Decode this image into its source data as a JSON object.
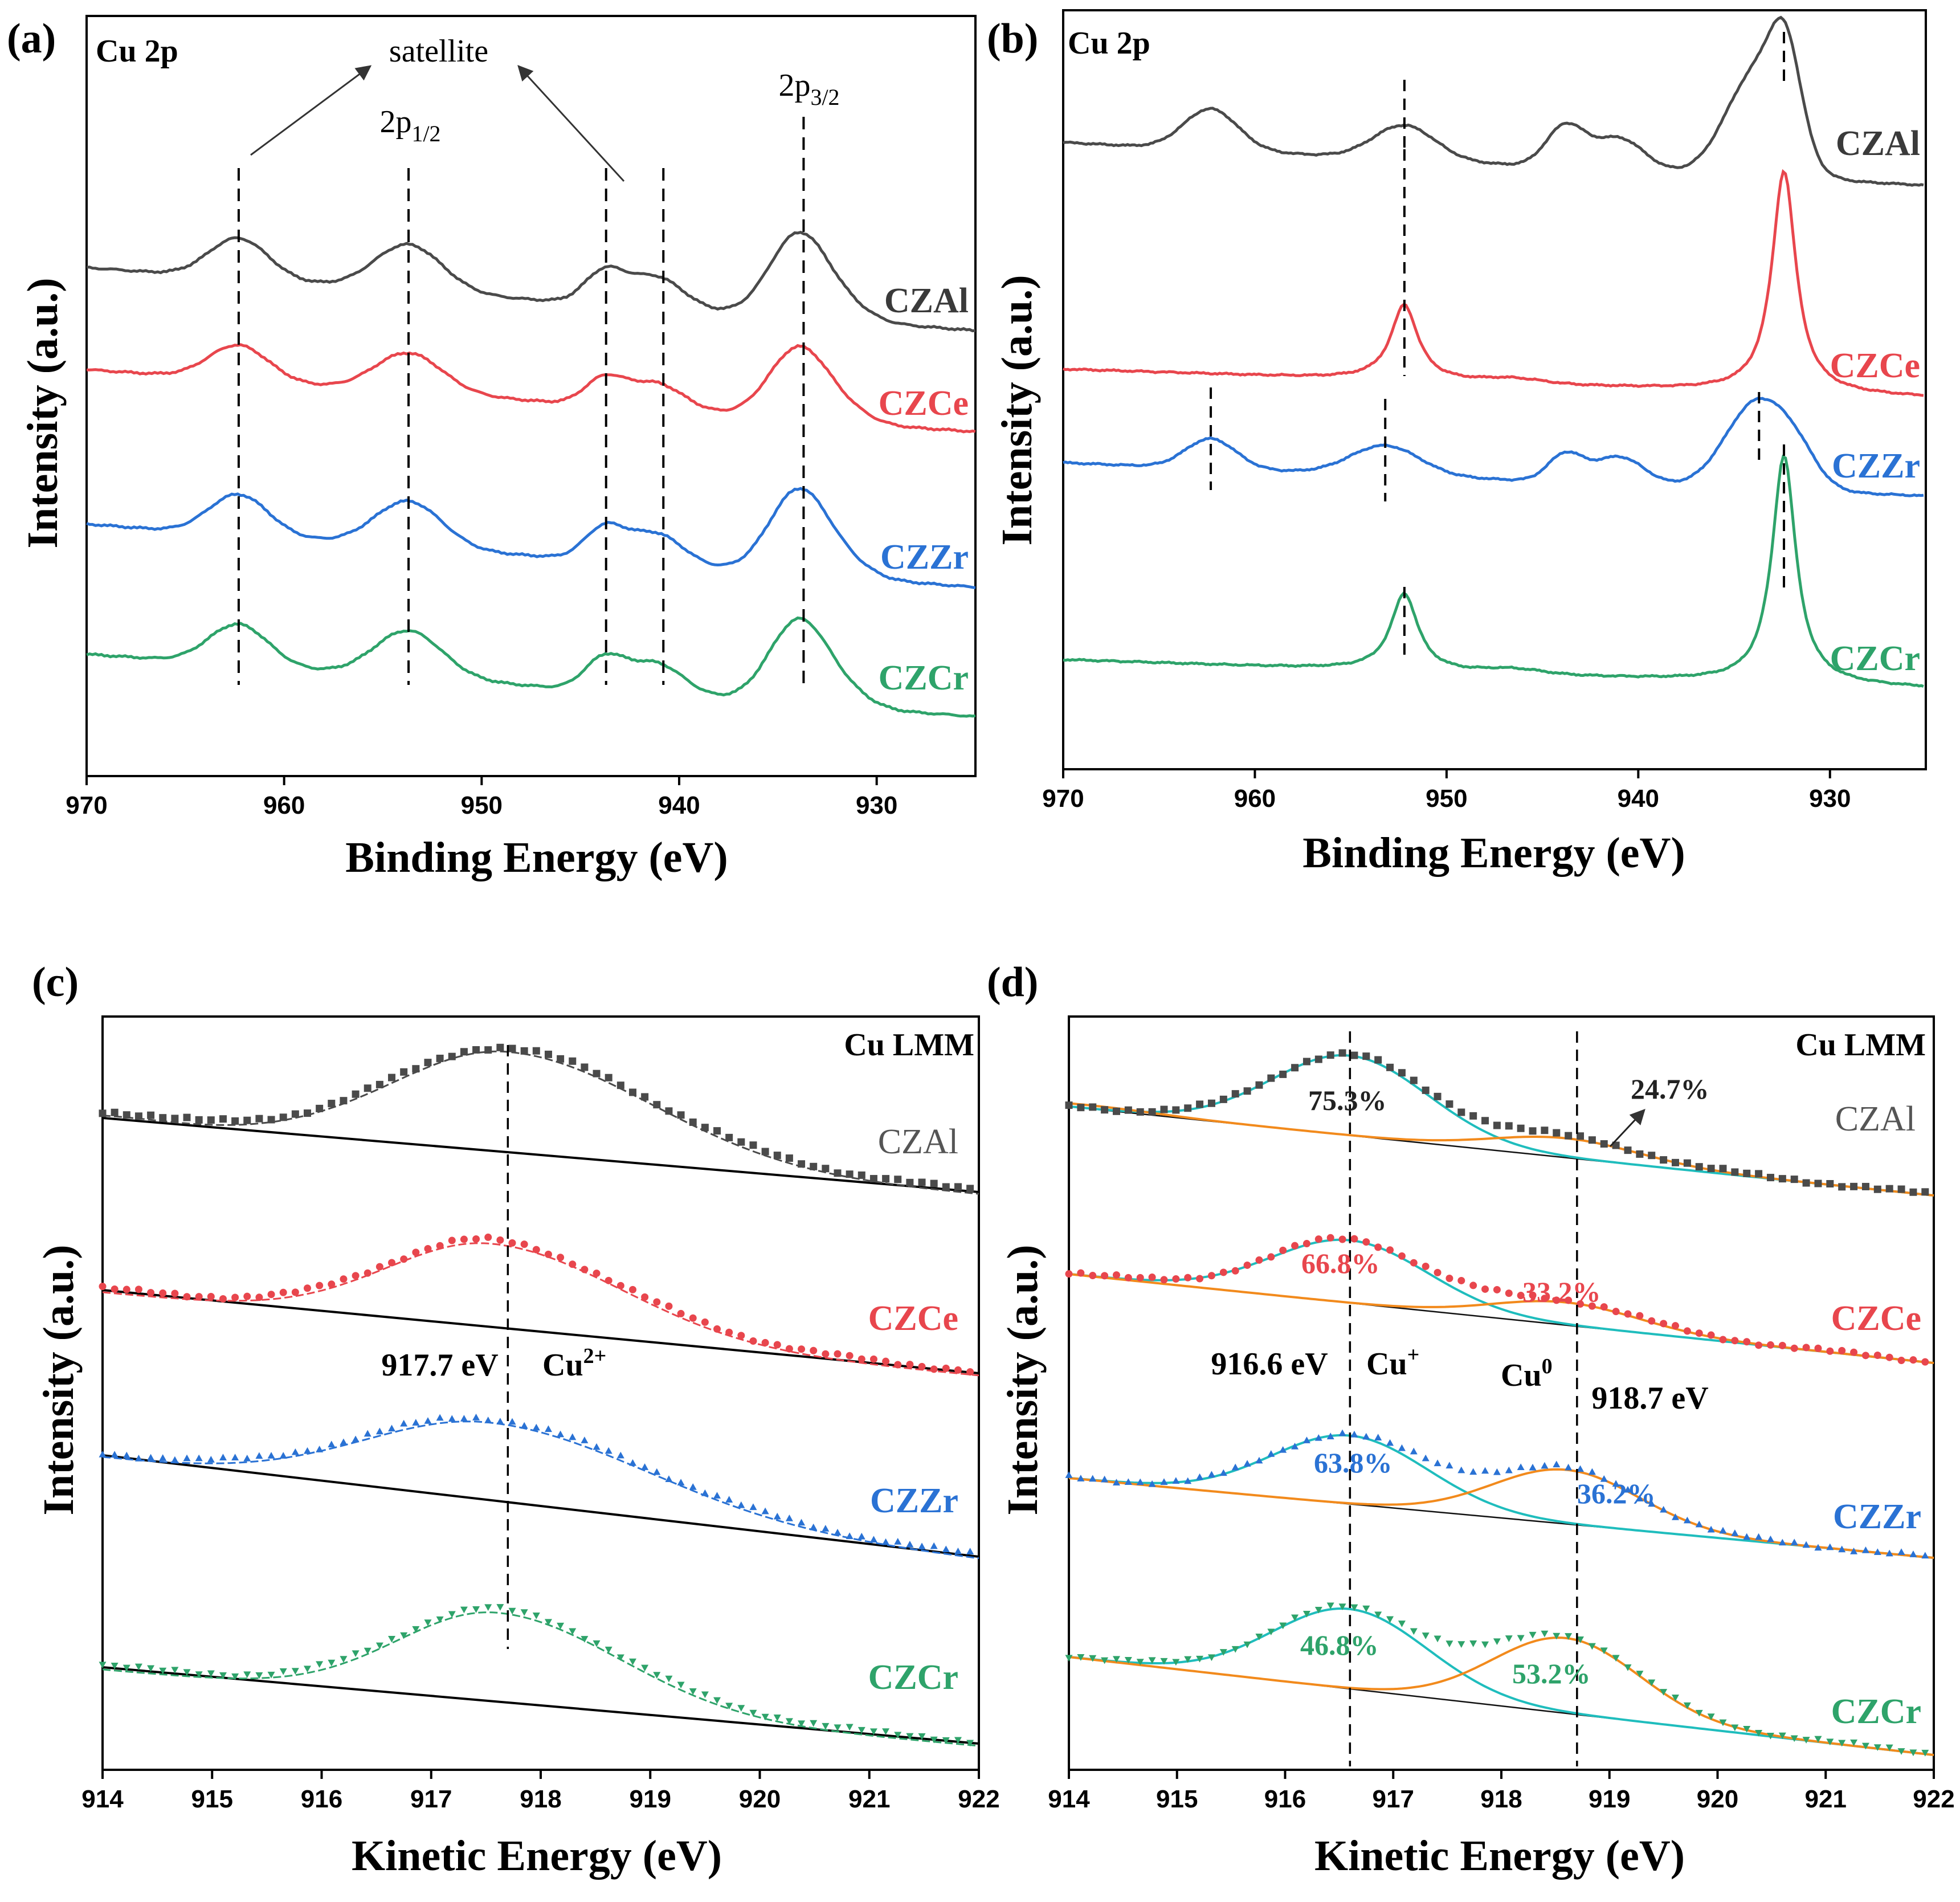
{
  "colors": {
    "CZAl": "#4a4a4a",
    "CZCe": "#e8464d",
    "CZZr": "#2a72d4",
    "CZCr": "#2ea36a",
    "cyan_fit": "#1fbdbd",
    "orange_fit": "#f28a1c",
    "baseline": "#000000"
  },
  "chart_data": [
    {
      "panel": "(a)",
      "type": "line",
      "title": "Cu 2p",
      "xlabel": "Binding Energy (eV)",
      "ylabel": "Intensity (a.u.)",
      "xlim": [
        970,
        925
      ],
      "xticks": [
        970,
        960,
        950,
        940,
        930
      ],
      "peak_lines_x": [
        962.3,
        953.7,
        943.7,
        940.8,
        933.7
      ],
      "annotations": [
        {
          "text": "satellite"
        },
        {
          "text": "2p",
          "sub": "1/2"
        },
        {
          "text": "2p",
          "sub": "3/2"
        }
      ],
      "series": [
        {
          "name": "CZAl",
          "color": "CZAl",
          "offset": 3.0,
          "pattern": "a_ox"
        },
        {
          "name": "CZCe",
          "color": "CZCe",
          "offset": 2.0,
          "pattern": "a_ox_ce"
        },
        {
          "name": "CZZr",
          "color": "CZZr",
          "offset": 1.0,
          "pattern": "a_ox"
        },
        {
          "name": "CZCr",
          "color": "CZCr",
          "offset": 0.0,
          "pattern": "a_ox"
        }
      ]
    },
    {
      "panel": "(b)",
      "type": "line",
      "title": "Cu 2p",
      "xlabel": "Binding Energy (eV)",
      "ylabel": "Intensity (a.u.)",
      "xlim": [
        970,
        925
      ],
      "xticks": [
        970,
        960,
        950,
        940,
        930
      ],
      "series": [
        {
          "name": "CZAl",
          "color": "CZAl",
          "pattern": "b_ox",
          "peak_lines_x": [
            952.2,
            932.4
          ]
        },
        {
          "name": "CZCe",
          "color": "CZCe",
          "pattern": "b_red",
          "peak_lines_x": []
        },
        {
          "name": "CZZr",
          "color": "CZZr",
          "pattern": "b_zr",
          "peak_lines_x": [
            962.3,
            953.2,
            933.7,
            932.4
          ]
        },
        {
          "name": "CZCr",
          "color": "CZCr",
          "pattern": "b_red",
          "peak_lines_x": [
            952.2,
            932.4
          ]
        }
      ]
    },
    {
      "panel": "(c)",
      "type": "scatter",
      "title": "Cu LMM",
      "xlabel": "Kinetic Energy (eV)",
      "ylabel": "Intensity (a.u.)",
      "xlim": [
        914,
        922
      ],
      "xticks": [
        914,
        915,
        916,
        917,
        918,
        919,
        920,
        921,
        922
      ],
      "peak_line_x": 917.7,
      "peak_energy_label": "917.7 eV",
      "species_label": {
        "text": "Cu",
        "sup": "2+"
      },
      "series": [
        {
          "name": "CZAl",
          "color": "CZAl",
          "marker": "square",
          "peak_x": 917.7
        },
        {
          "name": "CZCe",
          "color": "CZCe",
          "marker": "circle",
          "peak_x": 917.55
        },
        {
          "name": "CZZr",
          "color": "CZZr",
          "marker": "triangle-up",
          "peak_x": 917.55
        },
        {
          "name": "CZCr",
          "color": "CZCr",
          "marker": "triangle-down",
          "peak_x": 917.6
        }
      ]
    },
    {
      "panel": "(d)",
      "type": "scatter",
      "title": "Cu LMM",
      "xlabel": "Kinetic Energy (eV)",
      "ylabel": "Intensity (a.u.)",
      "xlim": [
        914,
        922
      ],
      "xticks": [
        914,
        915,
        916,
        917,
        918,
        919,
        920,
        921,
        922
      ],
      "peak_lines_x": [
        916.6,
        918.7
      ],
      "energy_labels": [
        "916.6 eV",
        "918.7 eV"
      ],
      "species_labels": [
        {
          "text": "Cu",
          "sup": "+"
        },
        {
          "text": "Cu",
          "sup": "0"
        }
      ],
      "series": [
        {
          "name": "CZAl",
          "color": "CZAl",
          "marker": "square",
          "cu_plus_pct": "75.3%",
          "cu0_pct": "24.7%"
        },
        {
          "name": "CZCe",
          "color": "CZCe",
          "marker": "circle",
          "cu_plus_pct": "66.8%",
          "cu0_pct": "33.2%"
        },
        {
          "name": "CZZr",
          "color": "CZZr",
          "marker": "triangle-up",
          "cu_plus_pct": "63.8%",
          "cu0_pct": "36.2%"
        },
        {
          "name": "CZCr",
          "color": "CZCr",
          "marker": "triangle-down",
          "cu_plus_pct": "46.8%",
          "cu0_pct": "53.2%"
        }
      ]
    }
  ]
}
